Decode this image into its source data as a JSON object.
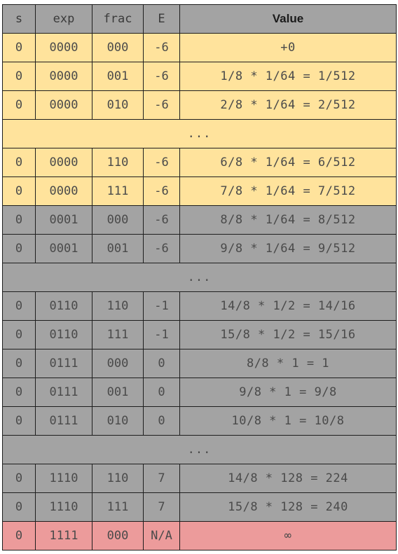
{
  "colors": {
    "header_bg": "#a3a3a3",
    "denormalized_bg": "#ffe39c",
    "normalized_bg": "#a3a3a3",
    "special_bg": "#ec9b9b",
    "border": "#1e1e1e"
  },
  "headers": {
    "s": "s",
    "exp": "exp",
    "frac": "frac",
    "E": "E",
    "value": "Value"
  },
  "rows": [
    {
      "s": "0",
      "exp": "0000",
      "frac": "000",
      "E": "-6",
      "value": "+0"
    },
    {
      "s": "0",
      "exp": "0000",
      "frac": "001",
      "E": "-6",
      "value": "1/8 * 1/64 = 1/512"
    },
    {
      "s": "0",
      "exp": "0000",
      "frac": "010",
      "E": "-6",
      "value": "2/8 * 1/64 = 2/512"
    },
    {
      "ellipsis": "..."
    },
    {
      "s": "0",
      "exp": "0000",
      "frac": "110",
      "E": "-6",
      "value": "6/8 * 1/64 = 6/512"
    },
    {
      "s": "0",
      "exp": "0000",
      "frac": "111",
      "E": "-6",
      "value": "7/8 * 1/64 = 7/512"
    },
    {
      "s": "0",
      "exp": "0001",
      "frac": "000",
      "E": "-6",
      "value": "8/8 * 1/64 = 8/512"
    },
    {
      "s": "0",
      "exp": "0001",
      "frac": "001",
      "E": "-6",
      "value": "9/8 * 1/64 = 9/512"
    },
    {
      "ellipsis": "..."
    },
    {
      "s": "0",
      "exp": "0110",
      "frac": "110",
      "E": "-1",
      "value": "14/8 * 1/2 = 14/16"
    },
    {
      "s": "0",
      "exp": "0110",
      "frac": "111",
      "E": "-1",
      "value": "15/8 * 1/2 = 15/16"
    },
    {
      "s": "0",
      "exp": "0111",
      "frac": "000",
      "E": "0",
      "value": "8/8 * 1 = 1"
    },
    {
      "s": "0",
      "exp": "0111",
      "frac": "001",
      "E": "0",
      "value": "9/8 * 1 = 9/8"
    },
    {
      "s": "0",
      "exp": "0111",
      "frac": "010",
      "E": "0",
      "value": "10/8 * 1 = 10/8"
    },
    {
      "ellipsis": "..."
    },
    {
      "s": "0",
      "exp": "1110",
      "frac": "110",
      "E": "7",
      "value": "14/8 * 128 = 224"
    },
    {
      "s": "0",
      "exp": "1110",
      "frac": "111",
      "E": "7",
      "value": "15/8 * 128 = 240"
    },
    {
      "s": "0",
      "exp": "1111",
      "frac": "000",
      "E": "N/A",
      "value": "∞"
    }
  ]
}
